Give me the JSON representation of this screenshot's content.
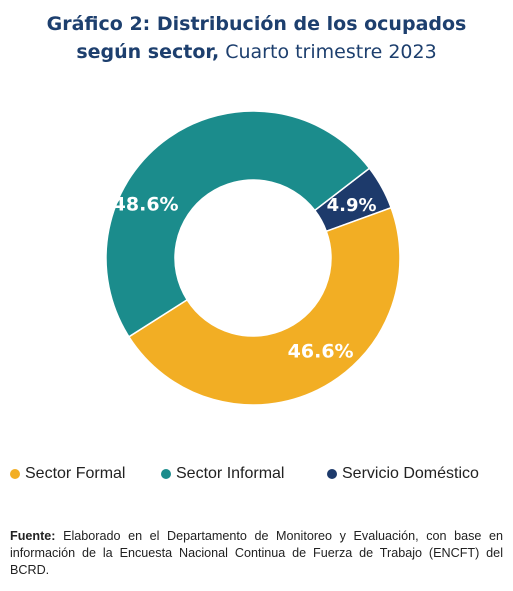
{
  "title": {
    "line1": "Gráfico 2: Distribución de los ocupados",
    "line2_bold": "según sector,",
    "line2_light": " Cuarto trimestre 2023"
  },
  "chart_data": {
    "type": "pie",
    "donut": true,
    "title": "Gráfico 2: Distribución de los ocupados según sector, Cuarto trimestre 2023",
    "categories": [
      "Sector Formal",
      "Sector Informal",
      "Servicio Doméstico"
    ],
    "values": [
      46.6,
      48.6,
      4.9
    ],
    "labels": [
      "46.6%",
      "48.6%",
      "4.9%"
    ],
    "colors": [
      "#f2ae24",
      "#1b8c8c",
      "#1d3a6b"
    ],
    "legend_placement": "bottom"
  },
  "legend": [
    {
      "label": "Sector Formal",
      "color": "#f2ae24"
    },
    {
      "label": "Sector Informal",
      "color": "#1b8c8c"
    },
    {
      "label": "Servicio Doméstico",
      "color": "#1d3a6b"
    }
  ],
  "source": {
    "label": "Fuente:",
    "text": " Elaborado en el Departamento de Monitoreo y Evaluación, con base en información de la Encuesta Nacional Continua de Fuerza de Trabajo (ENCFT) del BCRD."
  }
}
